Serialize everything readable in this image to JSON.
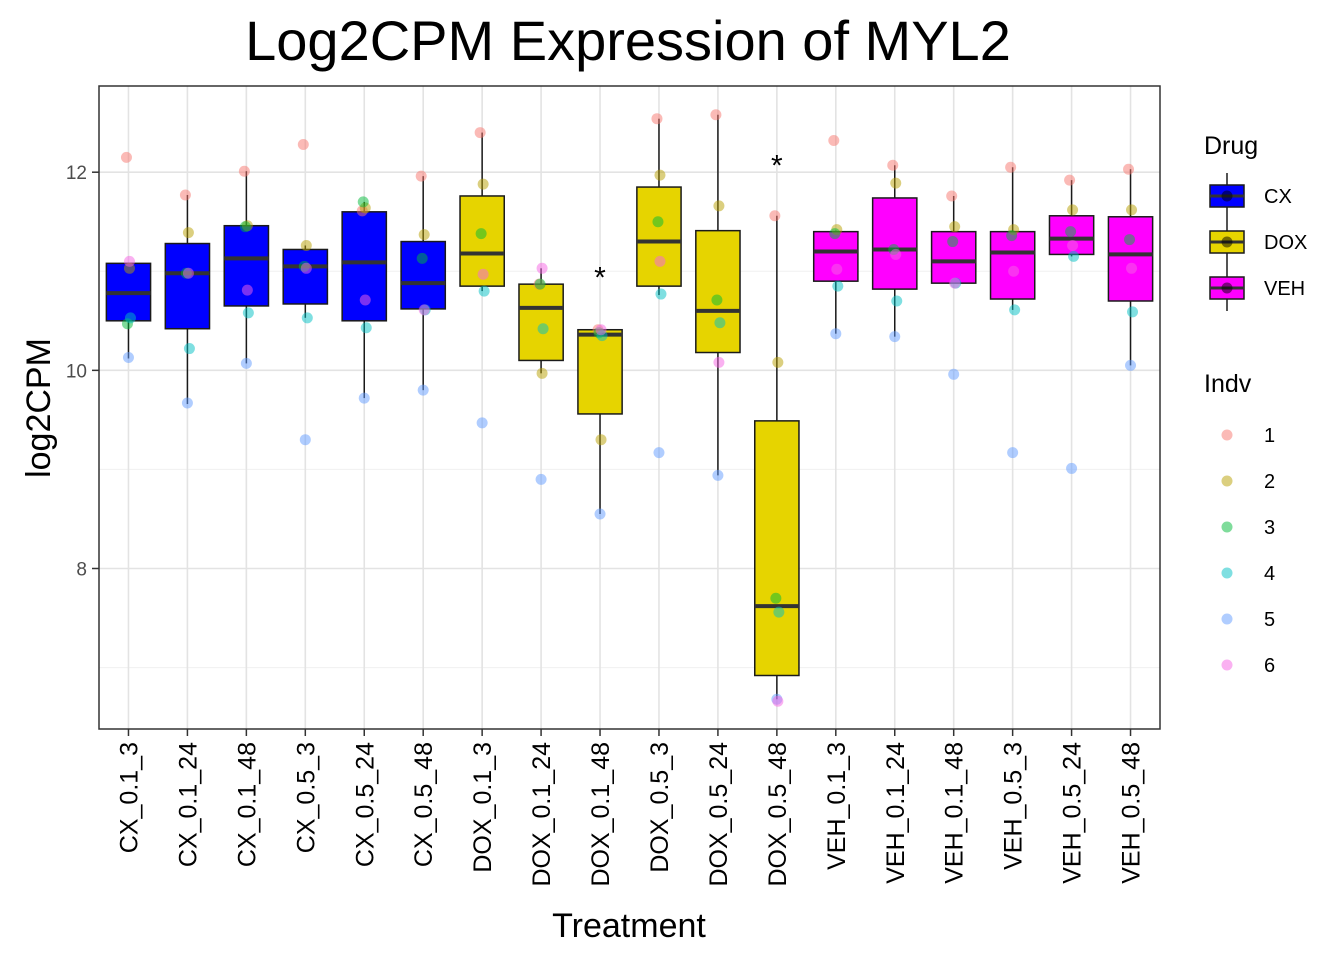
{
  "chart_data": {
    "type": "box",
    "title": "Log2CPM Expression of MYL2",
    "xlabel": "Treatment",
    "ylabel": "log2CPM",
    "ylim": [
      6.38,
      12.87
    ],
    "yticks": [
      8,
      10,
      12
    ],
    "grid": true,
    "categories": [
      "CX_0.1_3",
      "CX_0.1_24",
      "CX_0.1_48",
      "CX_0.5_3",
      "CX_0.5_24",
      "CX_0.5_48",
      "DOX_0.1_3",
      "DOX_0.1_24",
      "DOX_0.1_48",
      "DOX_0.5_3",
      "DOX_0.5_24",
      "DOX_0.5_48",
      "VEH_0.1_3",
      "VEH_0.1_24",
      "VEH_0.1_48",
      "VEH_0.5_3",
      "VEH_0.5_24",
      "VEH_0.5_48"
    ],
    "drug": [
      "CX",
      "CX",
      "CX",
      "CX",
      "CX",
      "CX",
      "DOX",
      "DOX",
      "DOX",
      "DOX",
      "DOX",
      "DOX",
      "VEH",
      "VEH",
      "VEH",
      "VEH",
      "VEH",
      "VEH"
    ],
    "boxes": [
      {
        "lower": 10.12,
        "q1": 10.5,
        "median": 10.78,
        "q3": 11.08,
        "upper": 11.08
      },
      {
        "lower": 9.66,
        "q1": 10.42,
        "median": 10.98,
        "q3": 11.28,
        "upper": 11.77
      },
      {
        "lower": 10.07,
        "q1": 10.65,
        "median": 11.13,
        "q3": 11.46,
        "upper": 12.01
      },
      {
        "lower": 10.53,
        "q1": 10.67,
        "median": 11.05,
        "q3": 11.22,
        "upper": 11.26
      },
      {
        "lower": 9.72,
        "q1": 10.5,
        "median": 11.09,
        "q3": 11.6,
        "upper": 11.7
      },
      {
        "lower": 9.8,
        "q1": 10.62,
        "median": 10.88,
        "q3": 11.3,
        "upper": 11.96
      },
      {
        "lower": 10.8,
        "q1": 10.85,
        "median": 11.18,
        "q3": 11.76,
        "upper": 12.4
      },
      {
        "lower": 9.97,
        "q1": 10.1,
        "median": 10.63,
        "q3": 10.87,
        "upper": 11.03
      },
      {
        "lower": 8.55,
        "q1": 9.56,
        "median": 10.36,
        "q3": 10.41,
        "upper": 10.41
      },
      {
        "lower": 10.76,
        "q1": 10.85,
        "median": 11.3,
        "q3": 11.85,
        "upper": 12.54
      },
      {
        "lower": 8.94,
        "q1": 10.18,
        "median": 10.6,
        "q3": 11.41,
        "upper": 12.58
      },
      {
        "lower": 6.68,
        "q1": 6.92,
        "median": 7.62,
        "q3": 9.49,
        "upper": 11.56
      },
      {
        "lower": 10.37,
        "q1": 10.9,
        "median": 11.2,
        "q3": 11.4,
        "upper": 11.41
      },
      {
        "lower": 10.34,
        "q1": 10.82,
        "median": 11.22,
        "q3": 11.74,
        "upper": 12.07
      },
      {
        "lower": 10.88,
        "q1": 10.88,
        "median": 11.1,
        "q3": 11.4,
        "upper": 11.76
      },
      {
        "lower": 10.61,
        "q1": 10.72,
        "median": 11.19,
        "q3": 11.4,
        "upper": 12.05
      },
      {
        "lower": 11.15,
        "q1": 11.17,
        "median": 11.33,
        "q3": 11.56,
        "upper": 11.92
      },
      {
        "lower": 10.05,
        "q1": 10.7,
        "median": 11.17,
        "q3": 11.55,
        "upper": 12.03
      }
    ],
    "points_by_indv": [
      {
        "indv": "1",
        "values": [
          12.15,
          11.77,
          12.01,
          12.28,
          11.61,
          11.96,
          12.4,
          10.87,
          10.41,
          12.54,
          12.58,
          11.56,
          12.32,
          12.07,
          11.76,
          12.05,
          11.92,
          12.03
        ]
      },
      {
        "indv": "2",
        "values": [
          11.03,
          11.39,
          11.46,
          11.26,
          11.64,
          11.37,
          11.88,
          9.97,
          9.3,
          11.97,
          11.66,
          10.08,
          11.42,
          11.89,
          11.45,
          11.42,
          11.62,
          11.62
        ]
      },
      {
        "indv": "3",
        "values": [
          10.47,
          10.98,
          11.45,
          11.05,
          11.7,
          11.13,
          11.38,
          10.87,
          10.38,
          11.5,
          10.71,
          7.7,
          11.38,
          11.22,
          11.3,
          11.36,
          11.4,
          11.32
        ]
      },
      {
        "indv": "4",
        "values": [
          10.53,
          10.22,
          10.58,
          10.53,
          10.43,
          10.61,
          10.8,
          10.42,
          10.35,
          10.77,
          10.48,
          7.56,
          10.85,
          10.7,
          10.88,
          10.61,
          11.15,
          10.59
        ]
      },
      {
        "indv": "5",
        "values": [
          10.13,
          9.67,
          10.07,
          9.3,
          9.72,
          9.8,
          9.47,
          8.9,
          8.55,
          9.17,
          8.94,
          6.68,
          10.37,
          10.34,
          9.96,
          9.17,
          9.01,
          10.05
        ]
      },
      {
        "indv": "6",
        "values": [
          11.1,
          10.98,
          10.81,
          11.03,
          10.71,
          10.61,
          10.97,
          11.03,
          10.41,
          11.1,
          10.08,
          6.66,
          11.02,
          11.17,
          10.88,
          11.0,
          11.26,
          11.03
        ]
      }
    ],
    "significance": [
      {
        "category": "DOX_0.1_48",
        "label": "*",
        "y": 10.98
      },
      {
        "category": "DOX_0.5_48",
        "label": "*",
        "y": 12.11
      }
    ],
    "legends": {
      "drug": {
        "title": "Drug",
        "items": [
          {
            "label": "CX",
            "color": "#0000ff"
          },
          {
            "label": "DOX",
            "color": "#e6d400"
          },
          {
            "label": "VEH",
            "color": "#ff00ff"
          }
        ]
      },
      "indv": {
        "title": "Indv",
        "items": [
          {
            "label": "1",
            "color": "#f8766d"
          },
          {
            "label": "2",
            "color": "#b79f00"
          },
          {
            "label": "3",
            "color": "#00ba38"
          },
          {
            "label": "4",
            "color": "#00bfc4"
          },
          {
            "label": "5",
            "color": "#619cff"
          },
          {
            "label": "6",
            "color": "#f564e3"
          }
        ]
      }
    }
  }
}
